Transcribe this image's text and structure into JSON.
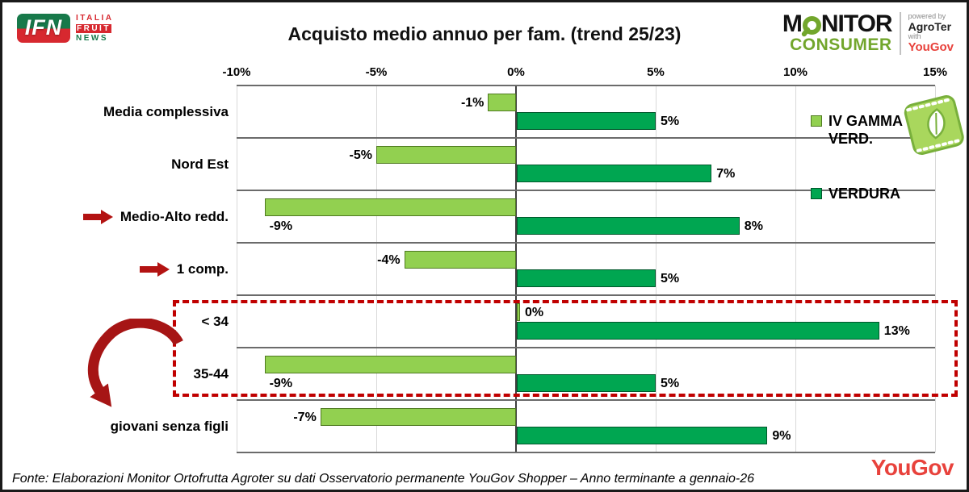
{
  "header": {
    "ifn": {
      "acronym": "IFN",
      "lines": [
        "ITALIA",
        "FRUIT",
        "NEWS"
      ]
    },
    "monitor": {
      "name_prefix": "M",
      "name_suffix": "NITOR",
      "subtitle": "CONSUMER",
      "powered_by": "powered by",
      "partner1": "AgroTer",
      "with": "with",
      "partner2": "YouGov"
    }
  },
  "chart_data": {
    "type": "bar",
    "orientation": "horizontal",
    "title": "Acquisto medio annuo per fam. (trend 25/23)",
    "categories": [
      "Media complessiva",
      "Nord Est",
      "Medio-Alto redd.",
      "1 comp.",
      "< 34",
      "35-44",
      "giovani senza figli"
    ],
    "series": [
      {
        "name": "IV GAMMA VERD.",
        "color": "#92D050",
        "border": "#4F7A21",
        "values": [
          -1,
          -5,
          -9,
          -4,
          0,
          -9,
          -7
        ],
        "labels": [
          "-1%",
          "-5%",
          "-9%",
          "-4%",
          "0%",
          "-9%",
          "-7%"
        ],
        "label_pos": [
          "left",
          "left",
          "below",
          "left",
          "right",
          "below",
          "left"
        ]
      },
      {
        "name": "VERDURA",
        "color": "#00A651",
        "border": "#00572B",
        "values": [
          5,
          7,
          8,
          5,
          13,
          5,
          9
        ],
        "labels": [
          "5%",
          "7%",
          "8%",
          "5%",
          "13%",
          "5%",
          "9%"
        ],
        "label_pos": [
          "right",
          "right",
          "right",
          "right",
          "right",
          "right",
          "right"
        ]
      }
    ],
    "value_suffix": "%",
    "xlim": [
      -10,
      15
    ],
    "x_ticks": [
      {
        "v": -10,
        "label": "-10%"
      },
      {
        "v": -5,
        "label": "-5%"
      },
      {
        "v": 0,
        "label": "0%"
      },
      {
        "v": 5,
        "label": "5%"
      },
      {
        "v": 10,
        "label": "10%"
      },
      {
        "v": 15,
        "label": "15%"
      }
    ],
    "grid": true,
    "legend_position": "right",
    "row_arrows": [
      false,
      false,
      true,
      true,
      false,
      false,
      false
    ],
    "highlight_box_rows": [
      4,
      5
    ],
    "curved_arrow_target": "giovani senza figli"
  },
  "footer": {
    "source": "Fonte: Elaborazioni Monitor Ortofrutta Agroter su dati Osservatorio permanente YouGov Shopper – Anno terminante a gennaio-26",
    "yougov_logo": "YouGov"
  },
  "colors": {
    "iv_gamma_green": "#92D050",
    "verdura_green": "#00A651",
    "annotation_red": "#C00000",
    "arrow_red": "#B31312",
    "yougov_red": "#E8423C",
    "monitor_green": "#72A62C"
  }
}
